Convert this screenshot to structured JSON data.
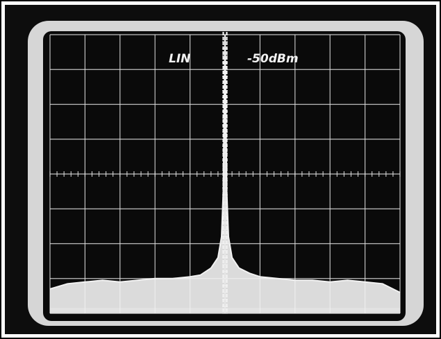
{
  "chart_data": {
    "type": "line",
    "title": "",
    "xlabel": "",
    "ylabel": "",
    "scale_mode": "LIN",
    "reference_level": "-50dBm",
    "grid": true,
    "grid_divisions": {
      "x": 10,
      "y": 8
    },
    "xlim": [
      0,
      10
    ],
    "ylim": [
      0,
      8
    ],
    "series": [
      {
        "x": [
          0,
          0.5,
          1,
          1.5,
          2,
          2.5,
          3,
          3.5,
          4,
          4.3,
          4.6,
          4.8,
          4.9,
          4.95,
          5,
          5.05,
          5.1,
          5.2,
          5.4,
          5.7,
          6,
          6.5,
          7,
          7.5,
          8,
          8.5,
          9,
          9.5,
          10
        ],
        "y": [
          0.7,
          0.85,
          0.9,
          0.95,
          0.9,
          0.95,
          1.0,
          1.0,
          1.05,
          1.1,
          1.3,
          1.6,
          2.2,
          3.5,
          8.0,
          3.5,
          2.2,
          1.6,
          1.3,
          1.15,
          1.05,
          1.0,
          0.95,
          0.95,
          0.9,
          0.95,
          0.9,
          0.85,
          0.6
        ]
      }
    ]
  },
  "colors": {
    "trace": "#f2f2f2",
    "screen": "#0a0a0a",
    "bezel": "#d9d9d9",
    "graticule": "#e0e0e0"
  }
}
